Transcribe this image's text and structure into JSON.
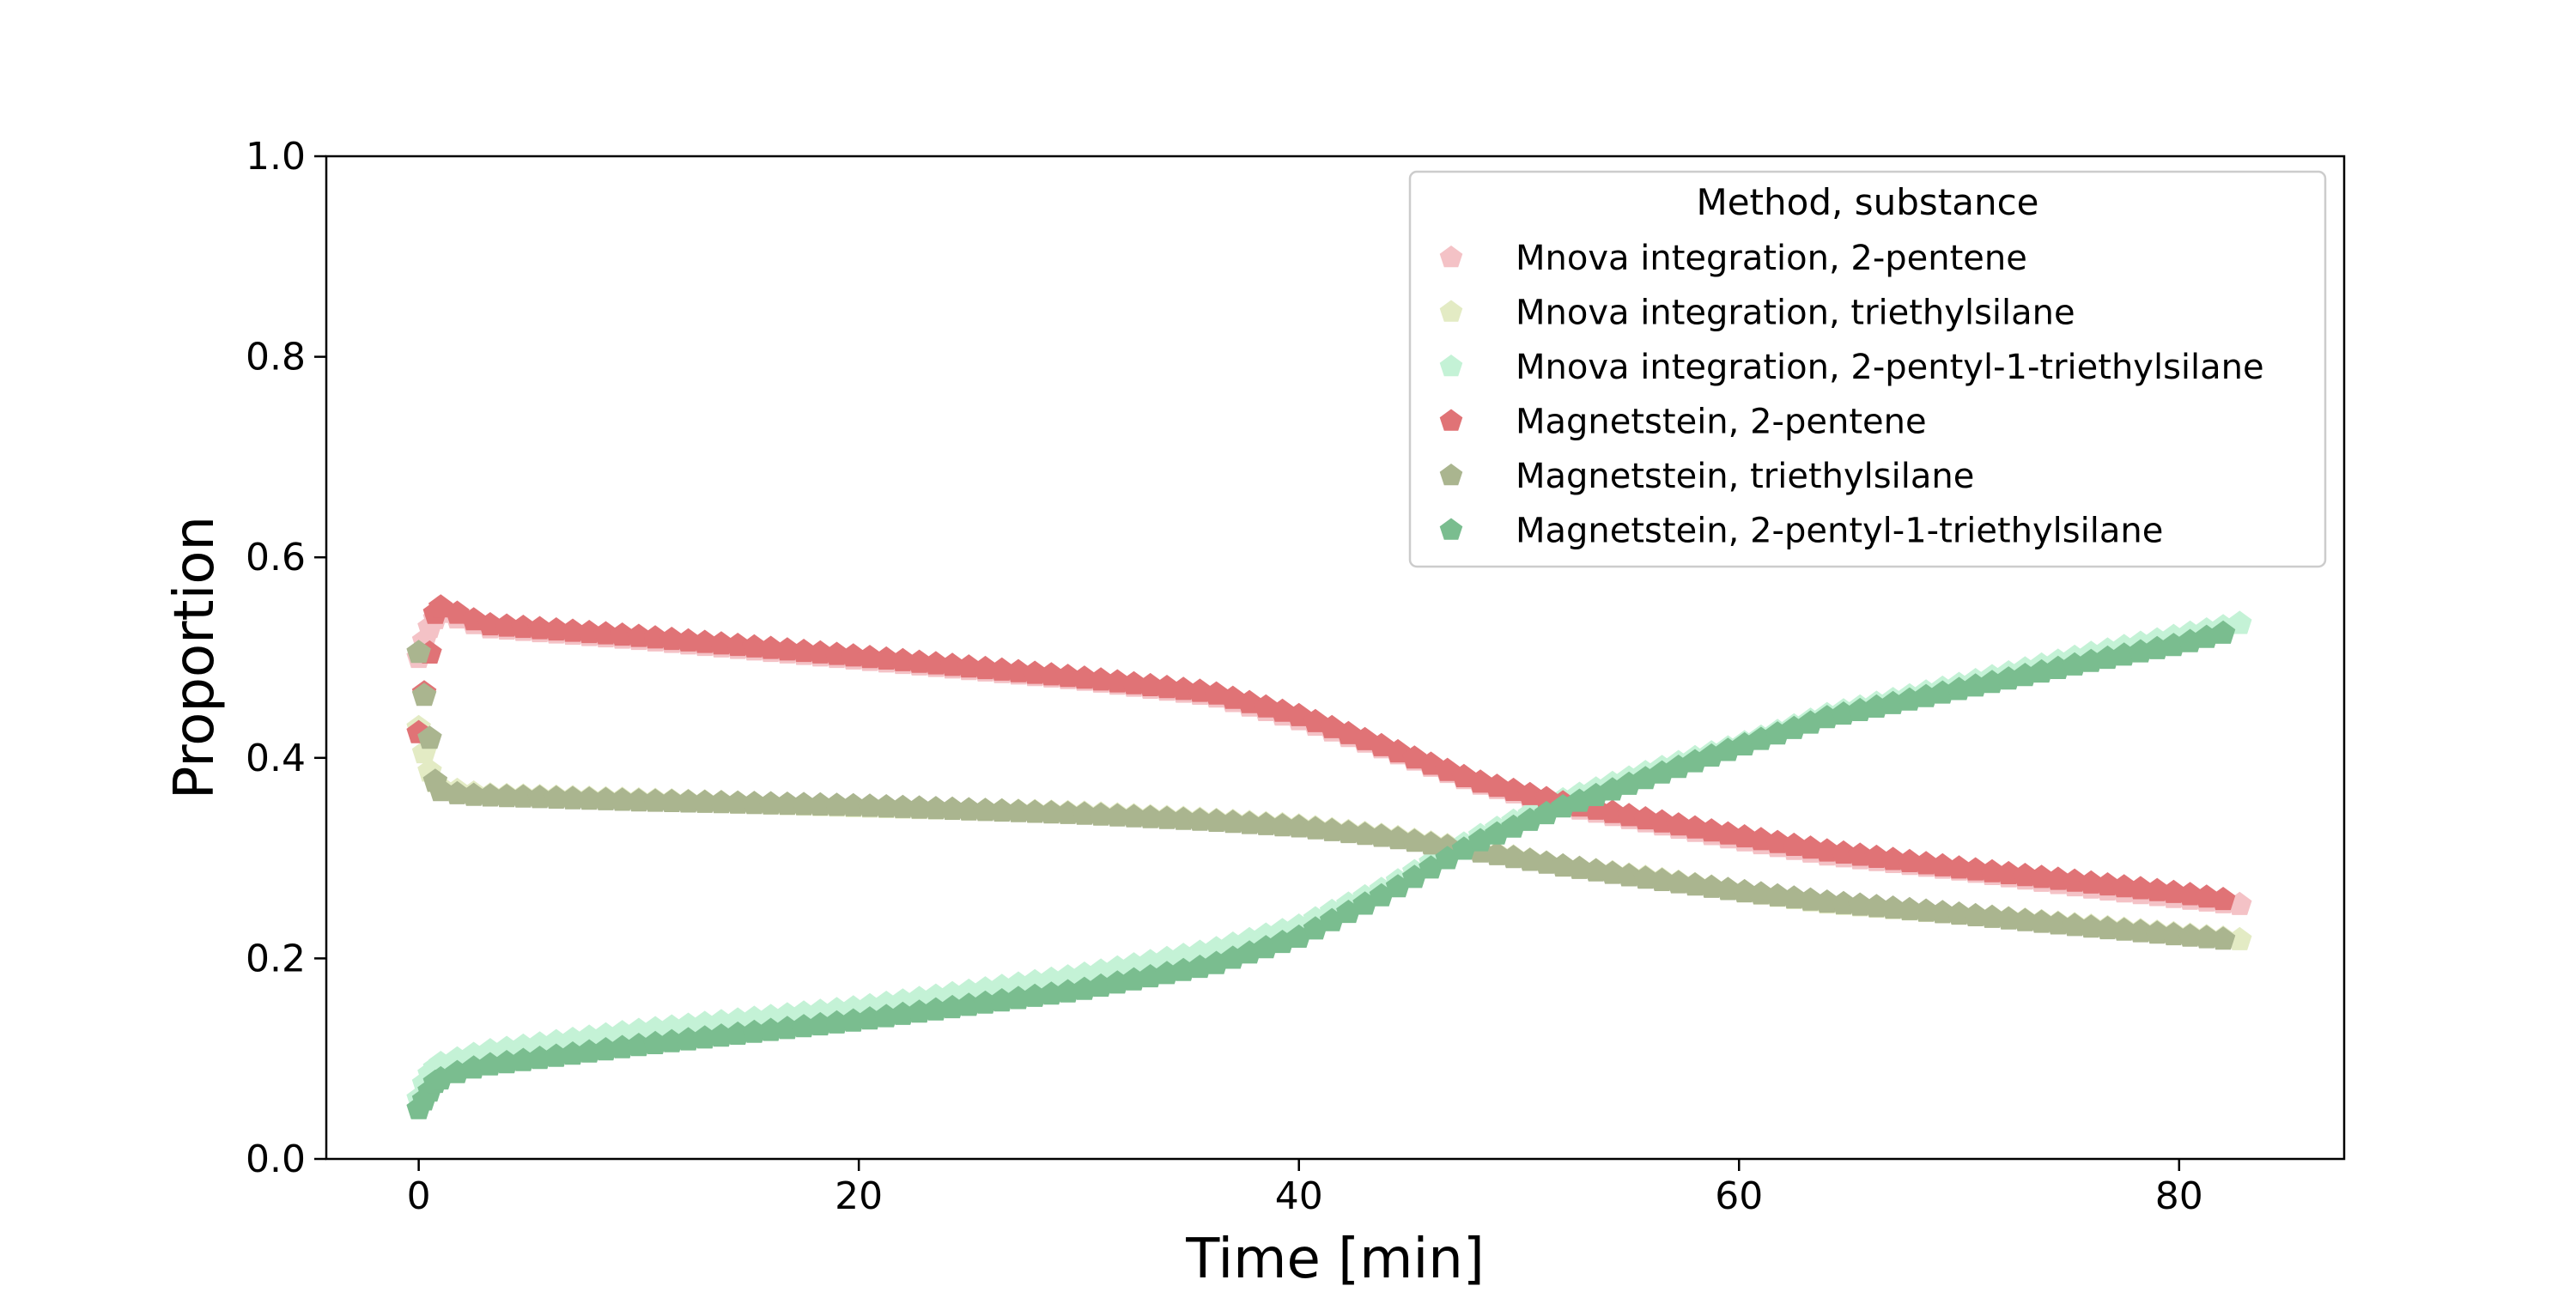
{
  "chart_data": {
    "type": "scatter",
    "xlabel": "Time [min]",
    "ylabel": "Proportion",
    "xlim": [
      -4.2,
      87.5
    ],
    "ylim": [
      0.0,
      1.0
    ],
    "xticks": [
      0,
      20,
      40,
      60,
      80
    ],
    "yticks": [
      0.0,
      0.2,
      0.4,
      0.6,
      0.8,
      1.0
    ],
    "xtick_labels": [
      "0",
      "20",
      "40",
      "60",
      "80"
    ],
    "ytick_labels": [
      "0.0",
      "0.2",
      "0.4",
      "0.6",
      "0.8",
      "1.0"
    ],
    "grid": false,
    "marker": "pentagon",
    "legend": {
      "title": "Method, substance",
      "placement": "upper-right"
    },
    "series": [
      {
        "name": "Mnova integration, 2-pentene",
        "color": "#f4c2c6",
        "points": [
          [
            0,
            0.5
          ],
          [
            0.3,
            0.52
          ],
          [
            0.6,
            0.535
          ],
          [
            1,
            0.545
          ],
          [
            3,
            0.53
          ],
          [
            10,
            0.518
          ],
          [
            20,
            0.498
          ],
          [
            30,
            0.478
          ],
          [
            36,
            0.462
          ],
          [
            40,
            0.438
          ],
          [
            44,
            0.408
          ],
          [
            48,
            0.375
          ],
          [
            52,
            0.352
          ],
          [
            56,
            0.335
          ],
          [
            60,
            0.318
          ],
          [
            64,
            0.303
          ],
          [
            70,
            0.288
          ],
          [
            76,
            0.27
          ],
          [
            80,
            0.26
          ],
          [
            83,
            0.253
          ]
        ]
      },
      {
        "name": "Mnova integration, triethylsilane",
        "color": "#e3ebc4",
        "points": [
          [
            0,
            0.43
          ],
          [
            0.3,
            0.4
          ],
          [
            0.6,
            0.38
          ],
          [
            1,
            0.37
          ],
          [
            3,
            0.363
          ],
          [
            10,
            0.358
          ],
          [
            20,
            0.351
          ],
          [
            30,
            0.345
          ],
          [
            36,
            0.338
          ],
          [
            40,
            0.332
          ],
          [
            44,
            0.322
          ],
          [
            48,
            0.308
          ],
          [
            52,
            0.292
          ],
          [
            56,
            0.28
          ],
          [
            60,
            0.267
          ],
          [
            64,
            0.255
          ],
          [
            70,
            0.244
          ],
          [
            76,
            0.232
          ],
          [
            80,
            0.224
          ],
          [
            83,
            0.218
          ]
        ]
      },
      {
        "name": "Mnova integration, 2-pentyl-1-triethylsilane",
        "color": "#c4f2d6",
        "points": [
          [
            0,
            0.06
          ],
          [
            0.3,
            0.078
          ],
          [
            0.6,
            0.088
          ],
          [
            1,
            0.095
          ],
          [
            3,
            0.107
          ],
          [
            10,
            0.128
          ],
          [
            20,
            0.151
          ],
          [
            30,
            0.183
          ],
          [
            36,
            0.208
          ],
          [
            40,
            0.232
          ],
          [
            44,
            0.271
          ],
          [
            48,
            0.32
          ],
          [
            52,
            0.358
          ],
          [
            56,
            0.387
          ],
          [
            60,
            0.413
          ],
          [
            64,
            0.443
          ],
          [
            70,
            0.473
          ],
          [
            76,
            0.504
          ],
          [
            80,
            0.522
          ],
          [
            83,
            0.535
          ]
        ]
      },
      {
        "name": "Magnetstein, 2-pentene",
        "color": "#e07376",
        "points": [
          [
            0,
            0.425
          ],
          [
            0.8,
            0.552
          ],
          [
            2,
            0.542
          ],
          [
            3,
            0.533
          ],
          [
            10,
            0.521
          ],
          [
            20,
            0.501
          ],
          [
            30,
            0.48
          ],
          [
            36,
            0.465
          ],
          [
            40,
            0.442
          ],
          [
            44,
            0.41
          ],
          [
            48,
            0.377
          ],
          [
            52,
            0.355
          ],
          [
            56,
            0.338
          ],
          [
            60,
            0.322
          ],
          [
            64,
            0.307
          ],
          [
            70,
            0.29
          ],
          [
            76,
            0.275
          ],
          [
            80,
            0.265
          ],
          [
            82.5,
            0.257
          ]
        ]
      },
      {
        "name": "Magnetstein, triethylsilane",
        "color": "#aab58f",
        "points": [
          [
            0,
            0.505
          ],
          [
            0.8,
            0.368
          ],
          [
            2,
            0.363
          ],
          [
            3,
            0.362
          ],
          [
            10,
            0.357
          ],
          [
            20,
            0.352
          ],
          [
            30,
            0.344
          ],
          [
            36,
            0.337
          ],
          [
            40,
            0.331
          ],
          [
            44,
            0.321
          ],
          [
            48,
            0.307
          ],
          [
            52,
            0.292
          ],
          [
            56,
            0.279
          ],
          [
            60,
            0.267
          ],
          [
            64,
            0.256
          ],
          [
            70,
            0.244
          ],
          [
            76,
            0.231
          ],
          [
            80,
            0.223
          ],
          [
            82.5,
            0.218
          ]
        ]
      },
      {
        "name": "Magnetstein, 2-pentyl-1-triethylsilane",
        "color": "#7abd8f",
        "points": [
          [
            0,
            0.05
          ],
          [
            0.8,
            0.078
          ],
          [
            2,
            0.088
          ],
          [
            3,
            0.093
          ],
          [
            10,
            0.113
          ],
          [
            20,
            0.138
          ],
          [
            30,
            0.168
          ],
          [
            36,
            0.193
          ],
          [
            40,
            0.221
          ],
          [
            44,
            0.265
          ],
          [
            48,
            0.315
          ],
          [
            52,
            0.351
          ],
          [
            56,
            0.381
          ],
          [
            60,
            0.411
          ],
          [
            64,
            0.44
          ],
          [
            70,
            0.468
          ],
          [
            76,
            0.496
          ],
          [
            80,
            0.513
          ],
          [
            82.5,
            0.527
          ]
        ]
      }
    ]
  }
}
